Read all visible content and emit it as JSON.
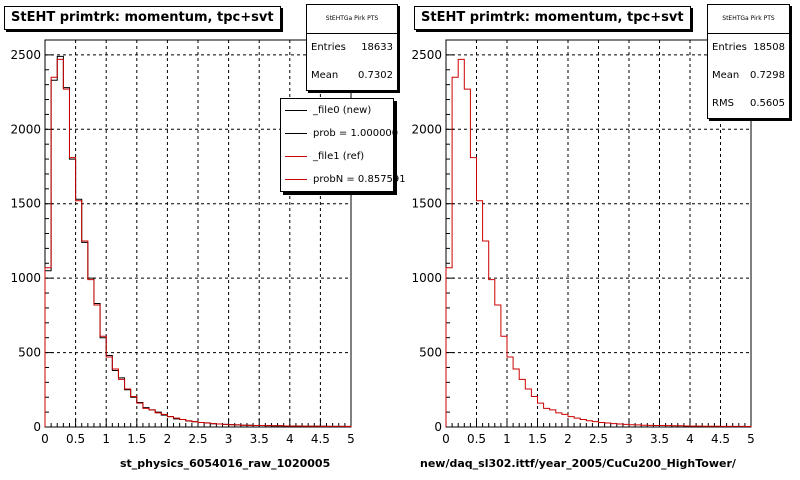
{
  "footer_text": "",
  "chart_data": [
    {
      "type": "histogram",
      "title": "StEHT primtrk: momentum, tpc+svt",
      "xlabel": "st_physics_6054016_raw_1020005",
      "ylabel": "",
      "xlim": [
        0,
        5
      ],
      "ylim": [
        0,
        2600
      ],
      "xticks": [
        "0",
        "0.5",
        "1",
        "1.5",
        "2",
        "2.5",
        "3",
        "3.5",
        "4",
        "4.5",
        "5"
      ],
      "yticks": [
        "0",
        "500",
        "1000",
        "1500",
        "2000",
        "2500"
      ],
      "grid": true,
      "bin_width": 0.1,
      "stats": {
        "name": "StEHTGa Pirk PTS",
        "rows": [
          {
            "label": "Entries",
            "value": "18633"
          },
          {
            "label": "Mean",
            "value": "0.7302"
          }
        ]
      },
      "legend": [
        {
          "label": "_file0 (new)",
          "color": "#000000"
        },
        {
          "label": "prob = 1.000000",
          "color": "#000000"
        },
        {
          "label": "_file1 (ref)",
          "color": "#cc0000"
        },
        {
          "label": "probN = 0.857591",
          "color": "#cc0000"
        }
      ],
      "series": [
        {
          "name": "_file0 (new)",
          "color": "#000000",
          "values": [
            1050,
            2330,
            2490,
            2280,
            1800,
            1530,
            1240,
            1000,
            830,
            600,
            480,
            380,
            330,
            250,
            200,
            165,
            130,
            115,
            100,
            80,
            70,
            55,
            50,
            40,
            35,
            30,
            28,
            22,
            20,
            18,
            16,
            14,
            12,
            12,
            10,
            10,
            9,
            8,
            8,
            7,
            6,
            6,
            5,
            5,
            5,
            5,
            4,
            4,
            4,
            4
          ]
        },
        {
          "name": "_file1 (ref)",
          "color": "#cc0000",
          "values": [
            1070,
            2350,
            2470,
            2270,
            1810,
            1520,
            1250,
            990,
            820,
            610,
            470,
            390,
            320,
            255,
            205,
            160,
            125,
            115,
            95,
            85,
            70,
            60,
            50,
            42,
            36,
            30,
            27,
            23,
            20,
            18,
            15,
            14,
            12,
            11,
            10,
            10,
            9,
            8,
            8,
            7,
            6,
            6,
            5,
            5,
            5,
            4,
            4,
            4,
            4,
            3
          ]
        }
      ]
    },
    {
      "type": "histogram",
      "title": "StEHT primtrk: momentum, tpc+svt",
      "xlabel": "new/daq_sl302.ittf/year_2005/CuCu200_HighTower/",
      "ylabel": "",
      "xlim": [
        0,
        5
      ],
      "ylim": [
        0,
        2600
      ],
      "xticks": [
        "0",
        "0.5",
        "1",
        "1.5",
        "2",
        "2.5",
        "3",
        "3.5",
        "4",
        "4.5",
        "5"
      ],
      "yticks": [
        "0",
        "500",
        "1000",
        "1500",
        "2000",
        "2500"
      ],
      "grid": true,
      "bin_width": 0.1,
      "stats": {
        "name": "StEHTGa Pirk PTS",
        "rows": [
          {
            "label": "Entries",
            "value": "18508"
          },
          {
            "label": "Mean",
            "value": "0.7298"
          },
          {
            "label": "RMS",
            "value": "0.5605"
          }
        ]
      },
      "legend": [],
      "series": [
        {
          "name": "",
          "color": "#cc0000",
          "values": [
            1070,
            2350,
            2470,
            2270,
            1810,
            1520,
            1250,
            990,
            820,
            610,
            470,
            390,
            320,
            255,
            205,
            160,
            125,
            115,
            95,
            85,
            70,
            60,
            50,
            42,
            36,
            30,
            27,
            23,
            20,
            18,
            15,
            14,
            12,
            11,
            10,
            10,
            9,
            8,
            8,
            7,
            6,
            6,
            5,
            5,
            5,
            4,
            4,
            4,
            4,
            3
          ]
        }
      ]
    }
  ]
}
